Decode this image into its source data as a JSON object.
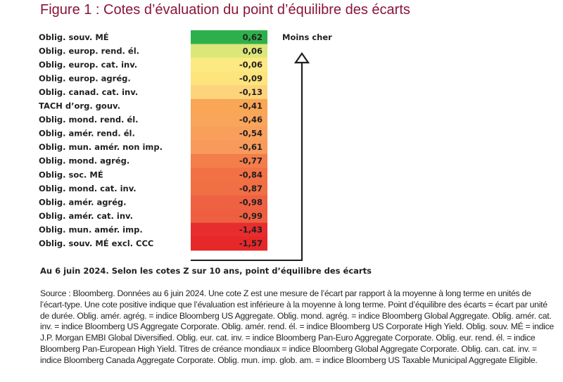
{
  "title": "Figure 1 : Cotes d’évaluation du point d’équilibre des écarts",
  "arrow_label": "Moins cher",
  "caption": "Au 6 juin 2024. Selon les cotes Z sur 10 ans, point d’équilibre des écarts",
  "source": "Source : Bloomberg. Données au 6 juin 2024. Une cote Z est une mesure de l’écart par rapport à la moyenne à long terme en unités de l’écart-type. Une cote positive indique que l’évaluation est inférieure à la moyenne à long terme. Point d’équilibre des écarts = écart par unité de durée. Oblig. amér. agrég. = indice Bloomberg US Aggregate. Oblig. mond. agrég. = indice Bloomberg Global Aggregate. Oblig. amér. cat. inv. = indice Bloomberg US Aggregate Corporate. Oblig. amér. rend. él. = indice Bloomberg US Corporate High Yield. Oblig. souv. MÉ = indice J.P. Morgan EMBI Global Diversified. Oblig. eur. cat. inv. = indice Bloomberg Pan-Euro Aggregate Corporate. Oblig. eur. rend. él. = indice Bloomberg Pan-European High Yield. Titres de créance mondiaux = indice Bloomberg Global Aggregate Corporate. Oblig. can. cat. inv. = indice Bloomberg Canada Aggregate Corporate. Oblig. mun. imp. glob. am. = indice Bloomberg US Taxable Municipal Aggregate Eligible.",
  "chart_data": {
    "type": "table",
    "categories": [
      "Oblig. souv. MÉ",
      "Oblig. europ. rend. él.",
      "Oblig. europ. cat. inv.",
      "Oblig. europ. agrég.",
      "Oblig. canad. cat. inv.",
      "TACH d’org. gouv.",
      "Oblig. mond. rend. él.",
      "Oblig. amér. rend. él.",
      "Oblig. mun. amér. non imp.",
      "Oblig. mond. agrég.",
      "Oblig. soc. MÉ",
      "Oblig. mond. cat. inv.",
      "Oblig. amér. agrég.",
      "Oblig. amér. cat. inv.",
      "Oblig. mun. amér. imp.",
      "Oblig. souv. MÉ excl. CCC"
    ],
    "values": [
      0.62,
      0.06,
      -0.06,
      -0.09,
      -0.13,
      -0.41,
      -0.46,
      -0.54,
      -0.61,
      -0.77,
      -0.84,
      -0.87,
      -0.98,
      -0.99,
      -1.43,
      -1.57
    ],
    "value_labels": [
      "0,62",
      "0,06",
      "-0,06",
      "-0,09",
      "-0,13",
      "-0,41",
      "-0,46",
      "-0,54",
      "-0,61",
      "-0,77",
      "-0,84",
      "-0,87",
      "-0,98",
      "-0,99",
      "-1,43",
      "-1,57"
    ],
    "colors": [
      "#2db04b",
      "#dce779",
      "#fde981",
      "#fde47c",
      "#fdd47b",
      "#f9a656",
      "#f9a55a",
      "#f8a05b",
      "#f79a5b",
      "#f37e4b",
      "#f17145",
      "#f06f45",
      "#ee6142",
      "#ee5f41",
      "#e82d2e",
      "#e62829"
    ]
  }
}
